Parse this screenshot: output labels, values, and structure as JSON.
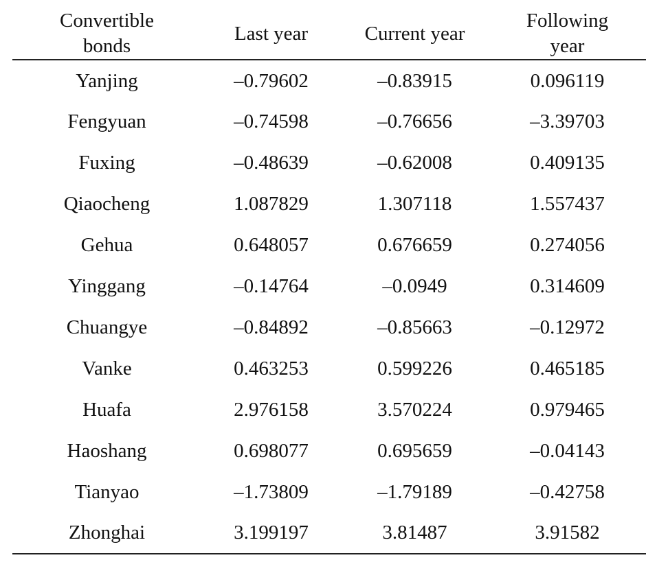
{
  "table": {
    "headers": [
      "Convertible\nbonds",
      "Last year",
      "Current year",
      "Following\nyear"
    ],
    "rows": [
      [
        "Yanjing",
        "–0.79602",
        "–0.83915",
        "0.096119"
      ],
      [
        "Fengyuan",
        "–0.74598",
        "–0.76656",
        "–3.39703"
      ],
      [
        "Fuxing",
        "–0.48639",
        "–0.62008",
        "0.409135"
      ],
      [
        "Qiaocheng",
        "1.087829",
        "1.307118",
        "1.557437"
      ],
      [
        "Gehua",
        "0.648057",
        "0.676659",
        "0.274056"
      ],
      [
        "Yinggang",
        "–0.14764",
        "–0.0949",
        "0.314609"
      ],
      [
        "Chuangye",
        "–0.84892",
        "–0.85663",
        "–0.12972"
      ],
      [
        "Vanke",
        "0.463253",
        "0.599226",
        "0.465185"
      ],
      [
        "Huafa",
        "2.976158",
        "3.570224",
        "0.979465"
      ],
      [
        "Haoshang",
        "0.698077",
        "0.695659",
        "–0.04143"
      ],
      [
        "Tianyao",
        "–1.73809",
        "–1.79189",
        "–0.42758"
      ],
      [
        "Zhonghai",
        "3.199197",
        "3.81487",
        "3.91582"
      ]
    ]
  }
}
